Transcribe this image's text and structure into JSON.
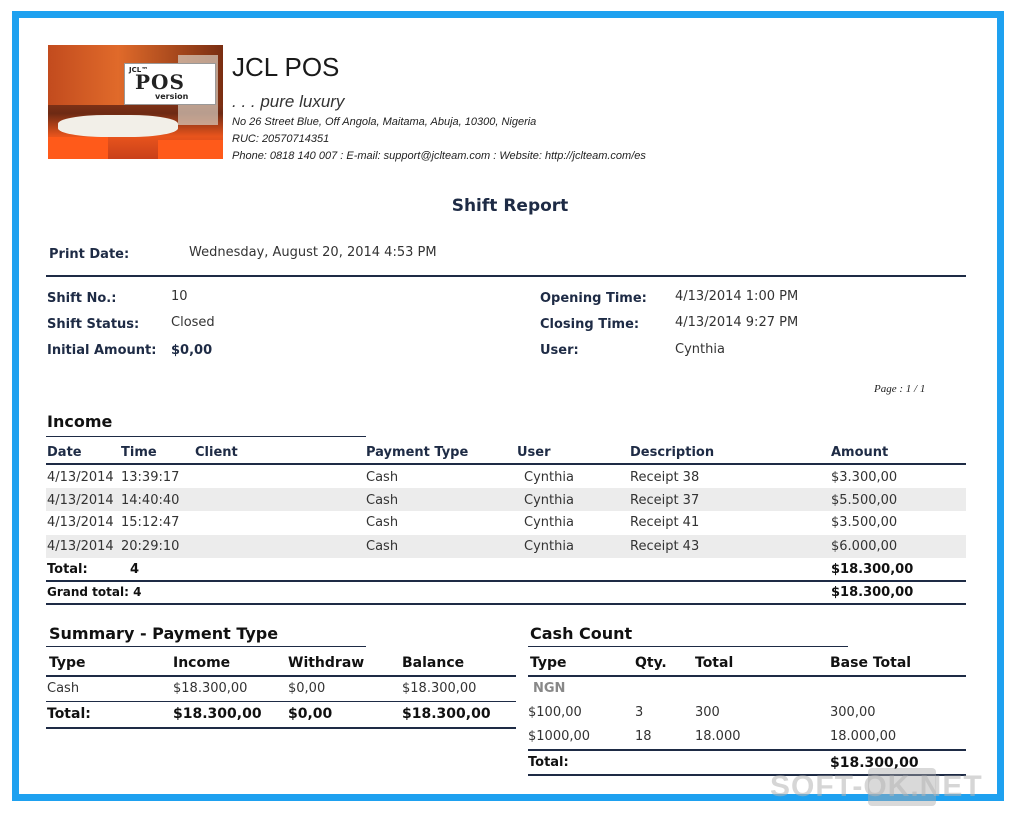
{
  "header": {
    "app_name": "JCL POS",
    "tagline": ". . . pure luxury",
    "address": "No 26 Street Blue, Off Angola, Maitama, Abuja, 10300, Nigeria",
    "ruc": "RUC: 20570714351",
    "contact": "Phone: 0818 140 007 : E-mail: support@jclteam.com : Website: http://jclteam.com/es",
    "logo_small": "JCL™",
    "logo_main": "POS",
    "logo_sub": "version"
  },
  "report": {
    "title": "Shift Report",
    "print_date_label": "Print Date:",
    "print_date": "Wednesday, August 20, 2014 4:53 PM",
    "page": "Page : 1 / 1"
  },
  "shift": {
    "no_label": "Shift No.:",
    "no": "10",
    "status_label": "Shift Status:",
    "status": "Closed",
    "initial_label": "Initial Amount:",
    "initial": "$0,00",
    "opening_label": "Opening Time:",
    "opening": "4/13/2014 1:00 PM",
    "closing_label": "Closing Time:",
    "closing": "4/13/2014 9:27 PM",
    "user_label": "User:",
    "user": "Cynthia"
  },
  "income": {
    "title": "Income",
    "headers": {
      "date": "Date",
      "time": "Time",
      "client": "Client",
      "payment": "Payment Type",
      "user": "User",
      "description": "Description",
      "amount": "Amount"
    },
    "rows": [
      {
        "date": "4/13/2014",
        "time": "13:39:17",
        "client": "",
        "payment": "Cash",
        "user": "Cynthia",
        "description": "Receipt 38",
        "amount": "$3.300,00"
      },
      {
        "date": "4/13/2014",
        "time": "14:40:40",
        "client": "",
        "payment": "Cash",
        "user": "Cynthia",
        "description": "Receipt 37",
        "amount": "$5.500,00"
      },
      {
        "date": "4/13/2014",
        "time": "15:12:47",
        "client": "",
        "payment": "Cash",
        "user": "Cynthia",
        "description": "Receipt 41",
        "amount": "$3.500,00"
      },
      {
        "date": "4/13/2014",
        "time": "20:29:10",
        "client": "",
        "payment": "Cash",
        "user": "Cynthia",
        "description": "Receipt 43",
        "amount": "$6.000,00"
      }
    ],
    "total_label": "Total:",
    "total_count": "4",
    "total_amount": "$18.300,00",
    "grand_label": "Grand total: 4",
    "grand_amount": "$18.300,00"
  },
  "summary": {
    "title": "Summary - Payment Type",
    "headers": {
      "type": "Type",
      "income": "Income",
      "withdraw": "Withdraw",
      "balance": "Balance"
    },
    "rows": [
      {
        "type": "Cash",
        "income": "$18.300,00",
        "withdraw": "$0,00",
        "balance": "$18.300,00"
      }
    ],
    "total": {
      "label": "Total:",
      "income": "$18.300,00",
      "withdraw": "$0,00",
      "balance": "$18.300,00"
    }
  },
  "cash_count": {
    "title": "Cash Count",
    "headers": {
      "type": "Type",
      "qty": "Qty.",
      "total": "Total",
      "base_total": "Base Total"
    },
    "currency": "NGN",
    "rows": [
      {
        "type": "$100,00",
        "qty": "3",
        "total": "300",
        "base_total": "300,00"
      },
      {
        "type": "$1000,00",
        "qty": "18",
        "total": "18.000",
        "base_total": "18.000,00"
      }
    ],
    "total": {
      "label": "Total:",
      "base_total": "$18.300,00"
    }
  },
  "watermark": {
    "text": "SOFT-OK.NET"
  }
}
